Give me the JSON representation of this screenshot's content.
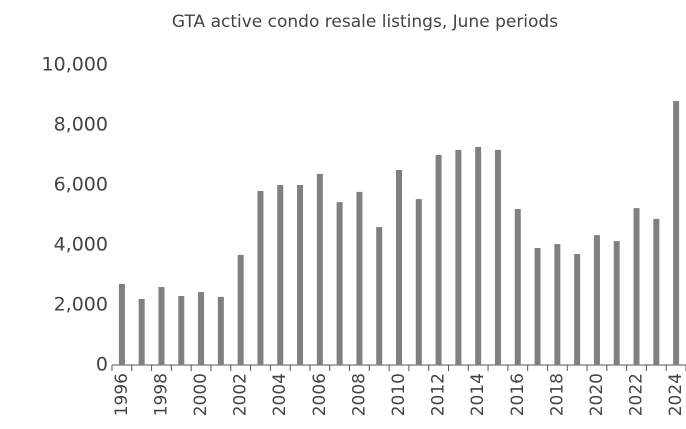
{
  "chart_data": {
    "type": "bar",
    "title": "GTA active condo resale listings, June periods",
    "categories": [
      "1996",
      null,
      "1998",
      null,
      "2000",
      null,
      "2002",
      null,
      "2004",
      null,
      "2006",
      null,
      "2008",
      null,
      "2010",
      null,
      "2012",
      null,
      "2014",
      null,
      "2016",
      null,
      "2018",
      null,
      "2020",
      null,
      "2022",
      null,
      "2024"
    ],
    "values": [
      2700,
      2200,
      2600,
      2300,
      2430,
      2270,
      3670,
      5800,
      6000,
      6000,
      6370,
      5430,
      5770,
      4600,
      6500,
      5530,
      7000,
      7170,
      7270,
      7170,
      5200,
      3900,
      4030,
      3700,
      4330,
      4130,
      5230,
      4870,
      8800
    ],
    "color": "#808080",
    "ylim": [
      0,
      10000
    ],
    "yticks": [
      0,
      {
        "value": 2000,
        "label": "2,000"
      },
      {
        "value": 4000,
        "label": "4,000"
      },
      {
        "value": 6000,
        "label": "6,000"
      },
      {
        "value": 8000,
        "label": "8,000"
      },
      {
        "value": 10000,
        "label": "10,000"
      }
    ],
    "grid": false
  }
}
